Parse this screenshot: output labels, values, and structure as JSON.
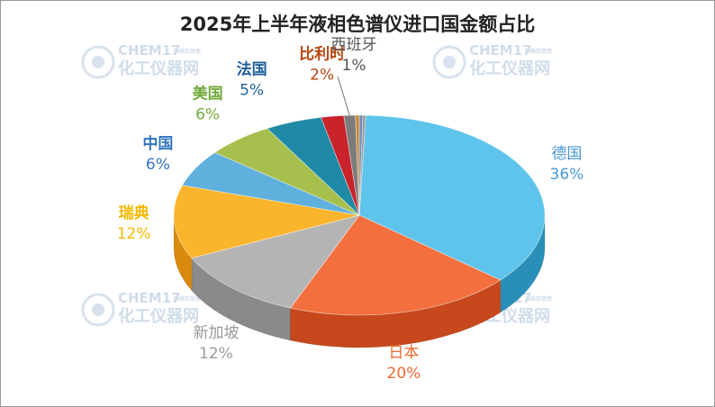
{
  "chart_data": {
    "type": "pie",
    "title": "2025年上半年液相色谱仪进口国金额占比",
    "slices": [
      {
        "label": "德国",
        "value": 36,
        "display": "36%",
        "color": "#5ec4ec",
        "dark": "#2a8fb8",
        "text_color": "#4a98d6"
      },
      {
        "label": "日本",
        "value": 20,
        "display": "20%",
        "color": "#f36f3e",
        "dark": "#c7481d",
        "text_color": "#ef6a2e"
      },
      {
        "label": "新加坡",
        "value": 12,
        "display": "12%",
        "color": "#b4b4b4",
        "dark": "#8a8a8a",
        "text_color": "#9a9a9a"
      },
      {
        "label": "瑞典",
        "value": 12,
        "display": "12%",
        "color": "#fbb52c",
        "dark": "#d98a0c",
        "text_color": "#f5b800"
      },
      {
        "label": "中国",
        "value": 6,
        "display": "6%",
        "color": "#5fb0dc",
        "dark": "#2f7fb0",
        "text_color": "#3575c0"
      },
      {
        "label": "美国",
        "value": 6,
        "display": "6%",
        "color": "#a7bf4c",
        "dark": "#7b9228",
        "text_color": "#72a93a"
      },
      {
        "label": "法国",
        "value": 5,
        "display": "5%",
        "color": "#1f8aa5",
        "dark": "#125f73",
        "text_color": "#1f5f9c"
      },
      {
        "label": "比利时",
        "value": 2,
        "display": "2%",
        "color": "#c9232b",
        "dark": "#8f151b",
        "text_color": "#b8460e"
      },
      {
        "label": "西班牙",
        "value": 1,
        "display": "1%",
        "color": "#7b7b7b",
        "dark": "#555555",
        "text_color": "#555555"
      }
    ],
    "extra_slivers": [
      {
        "value": 0.35,
        "color": "#c98a3a",
        "dark": "#8e5e22"
      },
      {
        "value": 0.3,
        "color": "#6a8cc0",
        "dark": "#46638e"
      },
      {
        "value": 0.25,
        "color": "#9a9a9a",
        "dark": "#6a6a6a"
      }
    ]
  },
  "watermark": {
    "latin": "CHEM17",
    "small": "网络实验室",
    "cn": "化工仪器网"
  }
}
